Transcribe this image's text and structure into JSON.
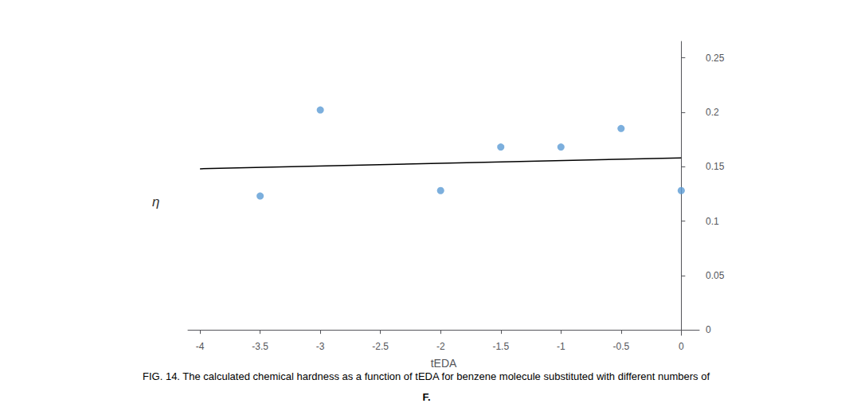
{
  "chart_data": {
    "type": "scatter",
    "xlabel": "tEDA",
    "ylabel": "η",
    "annotations": [
      "FIG. 14. The calculated chemical hardness as a function of tEDA for benzene molecule substituted with different numbers of",
      "F."
    ],
    "series": [
      {
        "type": "scatter",
        "color": "#5B9BD5",
        "marker": "circle",
        "x": [
          -3.5,
          -3.0,
          -2.0,
          -1.5,
          -1.0,
          -0.5,
          0.0
        ],
        "values": [
          0.123,
          0.202,
          0.128,
          0.168,
          0.168,
          0.185,
          0.128
        ]
      },
      {
        "type": "line",
        "color": "#000000",
        "line_style": "solid",
        "x": [
          -4.0,
          0.0
        ],
        "values": [
          0.148,
          0.158
        ]
      }
    ],
    "xlim": [
      -4.1,
      0.15
    ],
    "xticks": [
      -4,
      -3.5,
      -3,
      -2.5,
      -2,
      -1.5,
      -1,
      -0.5,
      0
    ],
    "ylim": [
      -0.005,
      0.265
    ],
    "yticks": [
      0,
      0.05,
      0.1,
      0.15,
      0.2,
      0.25
    ],
    "grid": false
  }
}
